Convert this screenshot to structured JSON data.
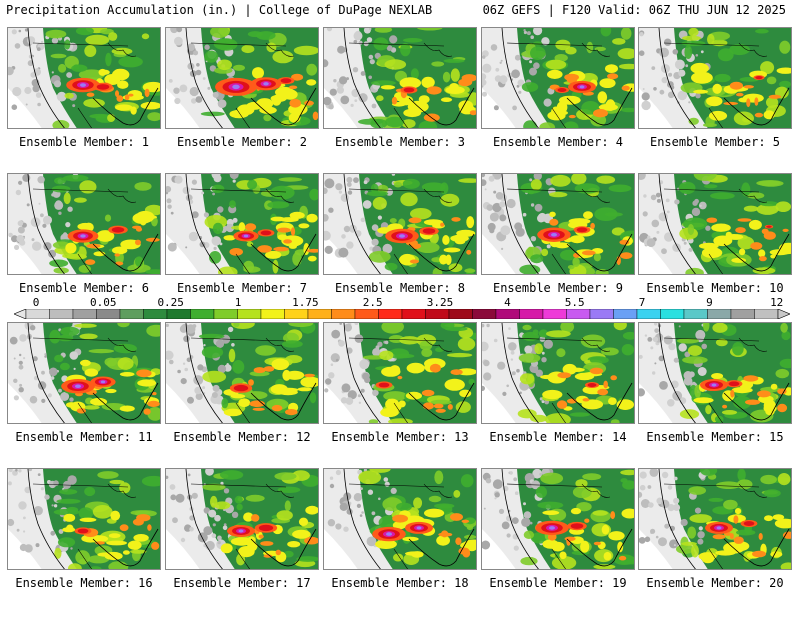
{
  "header": {
    "left": "Precipitation Accumulation (in.) | College of DuPage NEXLAB",
    "right": "06Z GEFS | F120 Valid: 06Z THU JUN 12 2025"
  },
  "members": [
    {
      "label": "Ensemble Member: 1",
      "heavy": [
        [
          75,
          92,
          1.2
        ],
        [
          95,
          95,
          0.7
        ]
      ]
    },
    {
      "label": "Ensemble Member: 2",
      "heavy": [
        [
          70,
          95,
          1.5
        ],
        [
          100,
          90,
          1.1
        ],
        [
          120,
          85,
          0.6
        ]
      ]
    },
    {
      "label": "Ensemble Member: 3",
      "heavy": [
        [
          85,
          100,
          0.6
        ]
      ]
    },
    {
      "label": "Ensemble Member: 4",
      "heavy": [
        [
          100,
          95,
          1.0
        ],
        [
          80,
          100,
          0.5
        ]
      ]
    },
    {
      "label": "Ensemble Member: 5",
      "heavy": [
        [
          120,
          80,
          0.4
        ]
      ]
    },
    {
      "label": "Ensemble Member: 6",
      "heavy": [
        [
          75,
          100,
          1.1
        ],
        [
          110,
          90,
          0.7
        ]
      ]
    },
    {
      "label": "Ensemble Member: 7",
      "heavy": [
        [
          80,
          100,
          0.9
        ],
        [
          100,
          95,
          0.6
        ]
      ]
    },
    {
      "label": "Ensemble Member: 8",
      "heavy": [
        [
          78,
          100,
          1.2
        ],
        [
          105,
          92,
          0.7
        ]
      ]
    },
    {
      "label": "Ensemble Member: 9",
      "heavy": [
        [
          72,
          98,
          1.2
        ],
        [
          100,
          90,
          0.6
        ]
      ]
    },
    {
      "label": "Ensemble Member: 10",
      "heavy": [
        [
          130,
          85,
          0.3
        ]
      ]
    },
    {
      "label": "Ensemble Member: 11",
      "heavy": [
        [
          70,
          102,
          1.2
        ],
        [
          95,
          95,
          0.9
        ]
      ]
    },
    {
      "label": "Ensemble Member: 12",
      "heavy": [
        [
          75,
          105,
          0.8
        ]
      ]
    },
    {
      "label": "Ensemble Member: 13",
      "heavy": [
        [
          60,
          100,
          0.6
        ]
      ]
    },
    {
      "label": "Ensemble Member: 14",
      "heavy": [
        [
          110,
          100,
          0.5
        ]
      ]
    },
    {
      "label": "Ensemble Member: 15",
      "heavy": [
        [
          75,
          100,
          1.0
        ],
        [
          95,
          98,
          0.6
        ]
      ]
    },
    {
      "label": "Ensemble Member: 16",
      "heavy": [
        [
          75,
          100,
          0.6
        ]
      ]
    },
    {
      "label": "Ensemble Member: 17",
      "heavy": [
        [
          75,
          100,
          1.0
        ],
        [
          100,
          95,
          0.8
        ]
      ]
    },
    {
      "label": "Ensemble Member: 18",
      "heavy": [
        [
          65,
          105,
          1.2
        ],
        [
          95,
          95,
          1.0
        ]
      ]
    },
    {
      "label": "Ensemble Member: 19",
      "heavy": [
        [
          70,
          95,
          1.2
        ],
        [
          95,
          92,
          0.7
        ]
      ]
    },
    {
      "label": "Ensemble Member: 20",
      "heavy": [
        [
          80,
          95,
          1.0
        ],
        [
          110,
          88,
          0.6
        ]
      ]
    }
  ],
  "colorscale": {
    "labels": [
      "0",
      "0.05",
      "0.25",
      "1",
      "1.75",
      "2.5",
      "3.25",
      "4",
      "5.5",
      "7",
      "9",
      "12"
    ],
    "colors": [
      "#d9d9d9",
      "#bdbdbd",
      "#a0a0a0",
      "#8a8a8a",
      "#5e9e5e",
      "#2e8b3e",
      "#1f7a2e",
      "#3fae2f",
      "#7fcc2a",
      "#b6e21e",
      "#f2f21a",
      "#ffd21a",
      "#ffb01a",
      "#ff8c1a",
      "#ff5a1a",
      "#ff2a1a",
      "#e0101a",
      "#c00a1a",
      "#9e0a1a",
      "#8b0a3a",
      "#b00a7a",
      "#d61aa8",
      "#ee3ad8",
      "#c85af0",
      "#9a7af5",
      "#6aa0f5",
      "#3ad2f0",
      "#2ae0e0",
      "#5ac8c8",
      "#8aa8a8",
      "#a0a0a0",
      "#c0c0c0"
    ]
  }
}
